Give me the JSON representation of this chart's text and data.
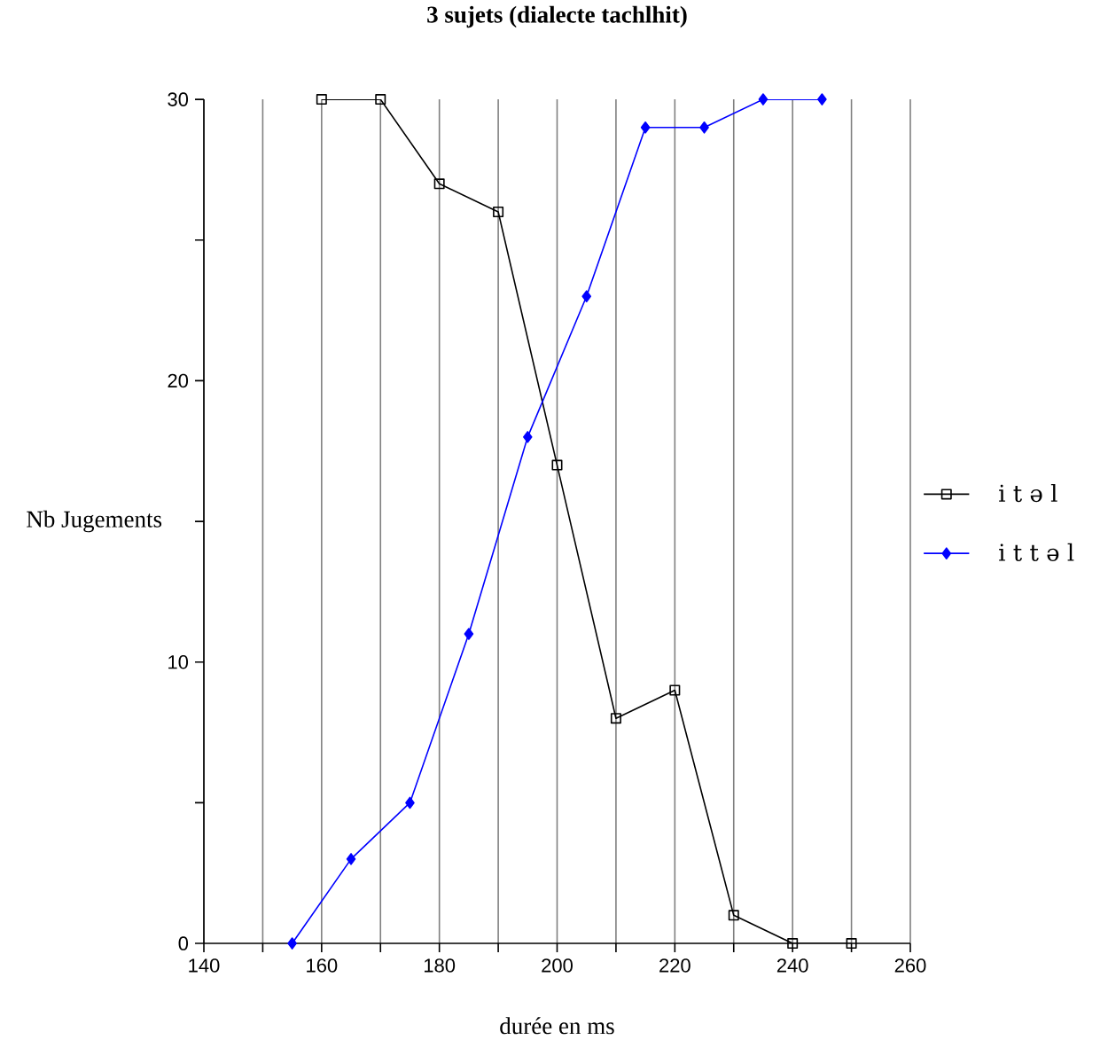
{
  "chart_data": {
    "type": "line",
    "title": "3 sujets (dialecte tachlhit)",
    "xlabel": "durée en ms",
    "ylabel": "Nb Jugements",
    "xlim": [
      140,
      260
    ],
    "xticks": [
      140,
      {
        "value": 150,
        "label": null
      },
      160,
      {
        "value": 170,
        "label": null
      },
      180,
      {
        "value": 190,
        "label": null
      },
      200,
      {
        "value": 210,
        "label": null
      },
      220,
      {
        "value": 230,
        "label": null
      },
      240,
      {
        "value": 250,
        "label": null
      },
      260
    ],
    "ylim": [
      0,
      30
    ],
    "yticks": [
      0,
      {
        "value": 5,
        "label": null
      },
      10,
      {
        "value": 15,
        "label": null
      },
      20,
      {
        "value": 25,
        "label": null
      },
      30
    ],
    "grid": "x",
    "legend": "right",
    "series": [
      {
        "name": "i t ə l",
        "color": "#000000",
        "marker": "square",
        "x": [
          160,
          170,
          180,
          190,
          200,
          210,
          220,
          230,
          240,
          250
        ],
        "values": [
          30,
          30,
          27,
          26,
          17,
          8,
          9,
          1,
          0,
          0
        ]
      },
      {
        "name": "i t t ə l",
        "color": "#0000ff",
        "marker": "diamond",
        "x": [
          155,
          165,
          175,
          185,
          195,
          205,
          215,
          225,
          235,
          245
        ],
        "values": [
          0,
          3,
          5,
          11,
          18,
          23,
          29,
          29,
          30,
          30
        ]
      }
    ]
  }
}
